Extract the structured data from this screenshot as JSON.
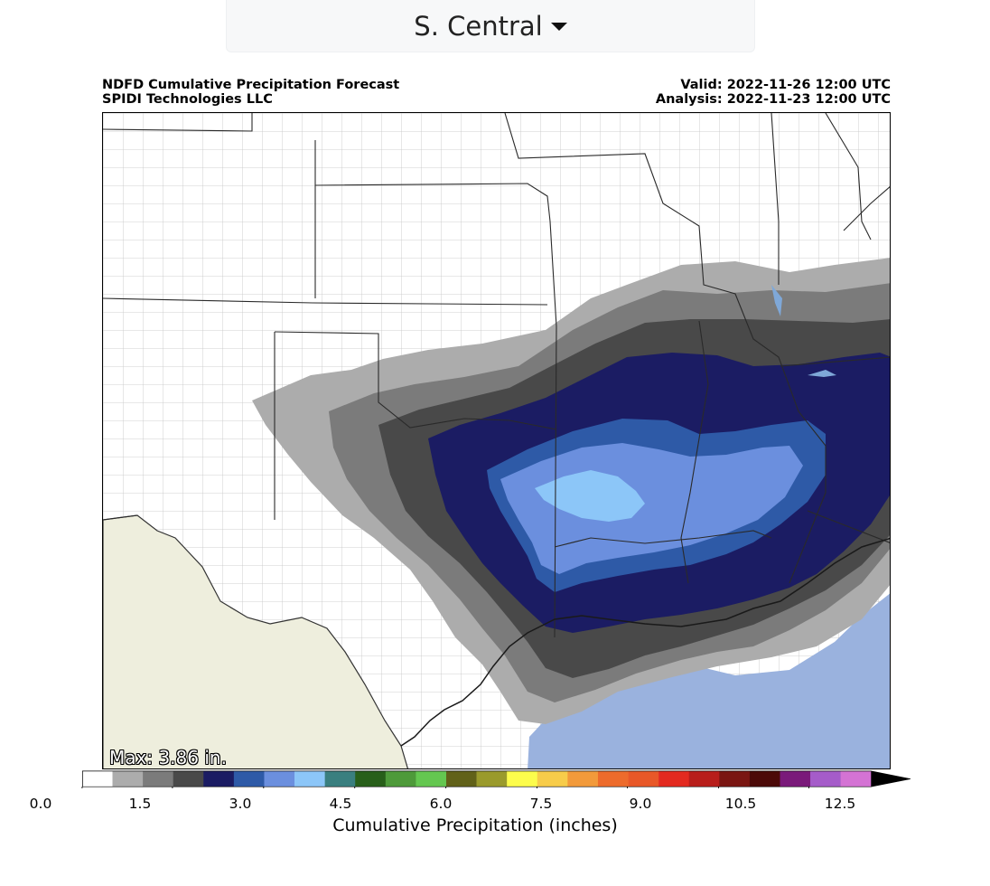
{
  "region_selector": {
    "label": "S. Central",
    "icon": "caret-down-icon"
  },
  "header": {
    "title_left_1": "NDFD Cumulative Precipitation Forecast",
    "title_left_2": "SPIDI Technologies LLC",
    "title_right_1": "Valid: 2022-11-26 12:00 UTC",
    "title_right_2": "Analysis: 2022-11-23 12:00 UTC"
  },
  "map": {
    "max_label": "Max: 3.86 in."
  },
  "colorbar": {
    "title": "Cumulative Precipitation (inches)",
    "ticks": [
      "0.0",
      "1.5",
      "3.0",
      "4.5",
      "6.0",
      "7.5",
      "9.0",
      "10.5",
      "12.5"
    ],
    "colors": [
      "#ffffff",
      "#acacac",
      "#7b7b7b",
      "#494949",
      "#1b1c63",
      "#2e5aa7",
      "#6b8fde",
      "#8cc6f8",
      "#3a7f7f",
      "#285f1a",
      "#4e9a3a",
      "#64c750",
      "#616119",
      "#9a9a2c",
      "#fcfc4c",
      "#f7cc4a",
      "#f29a3b",
      "#ed6b2c",
      "#e85828",
      "#e32a20",
      "#b81e1b",
      "#7a1612",
      "#4c0a08",
      "#7a1a7a",
      "#a55cc9",
      "#d473d4"
    ]
  }
}
